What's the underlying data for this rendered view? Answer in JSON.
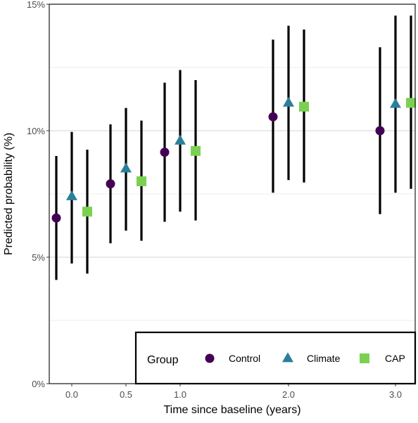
{
  "chart_data": {
    "type": "scatter",
    "title": "",
    "xlabel": "Time since baseline (years)",
    "ylabel": "Predicted probability (%)",
    "ylim": [
      0,
      15
    ],
    "y_tick_labels": [
      "0%",
      "5%",
      "10%",
      "15%"
    ],
    "y_ticks": [
      0,
      5,
      10,
      15
    ],
    "x_tick_labels": [
      "0.0",
      "0.5",
      "1.0",
      "2.0",
      "3.0"
    ],
    "grid": true,
    "legend": {
      "title": "Group",
      "position": "bottom-right-inside"
    },
    "series": [
      {
        "name": "Control",
        "marker": "circle",
        "color": "#440154",
        "points": [
          {
            "x": "0.0",
            "y": 6.55,
            "lo": 4.1,
            "hi": 9.0
          },
          {
            "x": "0.5",
            "y": 7.9,
            "lo": 5.55,
            "hi": 10.25
          },
          {
            "x": "1.0",
            "y": 9.15,
            "lo": 6.4,
            "hi": 11.9
          },
          {
            "x": "2.0",
            "y": 10.55,
            "lo": 7.55,
            "hi": 13.6
          },
          {
            "x": "3.0",
            "y": 10.0,
            "lo": 6.7,
            "hi": 13.3
          }
        ]
      },
      {
        "name": "Climate",
        "marker": "triangle",
        "color": "#2c7f99",
        "points": [
          {
            "x": "0.0",
            "y": 7.4,
            "lo": 4.75,
            "hi": 9.95
          },
          {
            "x": "0.5",
            "y": 8.5,
            "lo": 6.05,
            "hi": 10.9
          },
          {
            "x": "1.0",
            "y": 9.6,
            "lo": 6.8,
            "hi": 12.4
          },
          {
            "x": "2.0",
            "y": 11.1,
            "lo": 8.05,
            "hi": 14.15
          },
          {
            "x": "3.0",
            "y": 11.05,
            "lo": 7.55,
            "hi": 14.55
          }
        ]
      },
      {
        "name": "CAP",
        "marker": "square",
        "color": "#7ad151",
        "points": [
          {
            "x": "0.0",
            "y": 6.8,
            "lo": 4.35,
            "hi": 9.25
          },
          {
            "x": "0.5",
            "y": 8.0,
            "lo": 5.65,
            "hi": 10.4
          },
          {
            "x": "1.0",
            "y": 9.2,
            "lo": 6.45,
            "hi": 12.0
          },
          {
            "x": "2.0",
            "y": 10.95,
            "lo": 7.95,
            "hi": 14.0
          },
          {
            "x": "3.0",
            "y": 11.1,
            "lo": 7.7,
            "hi": 14.55
          }
        ]
      }
    ]
  }
}
